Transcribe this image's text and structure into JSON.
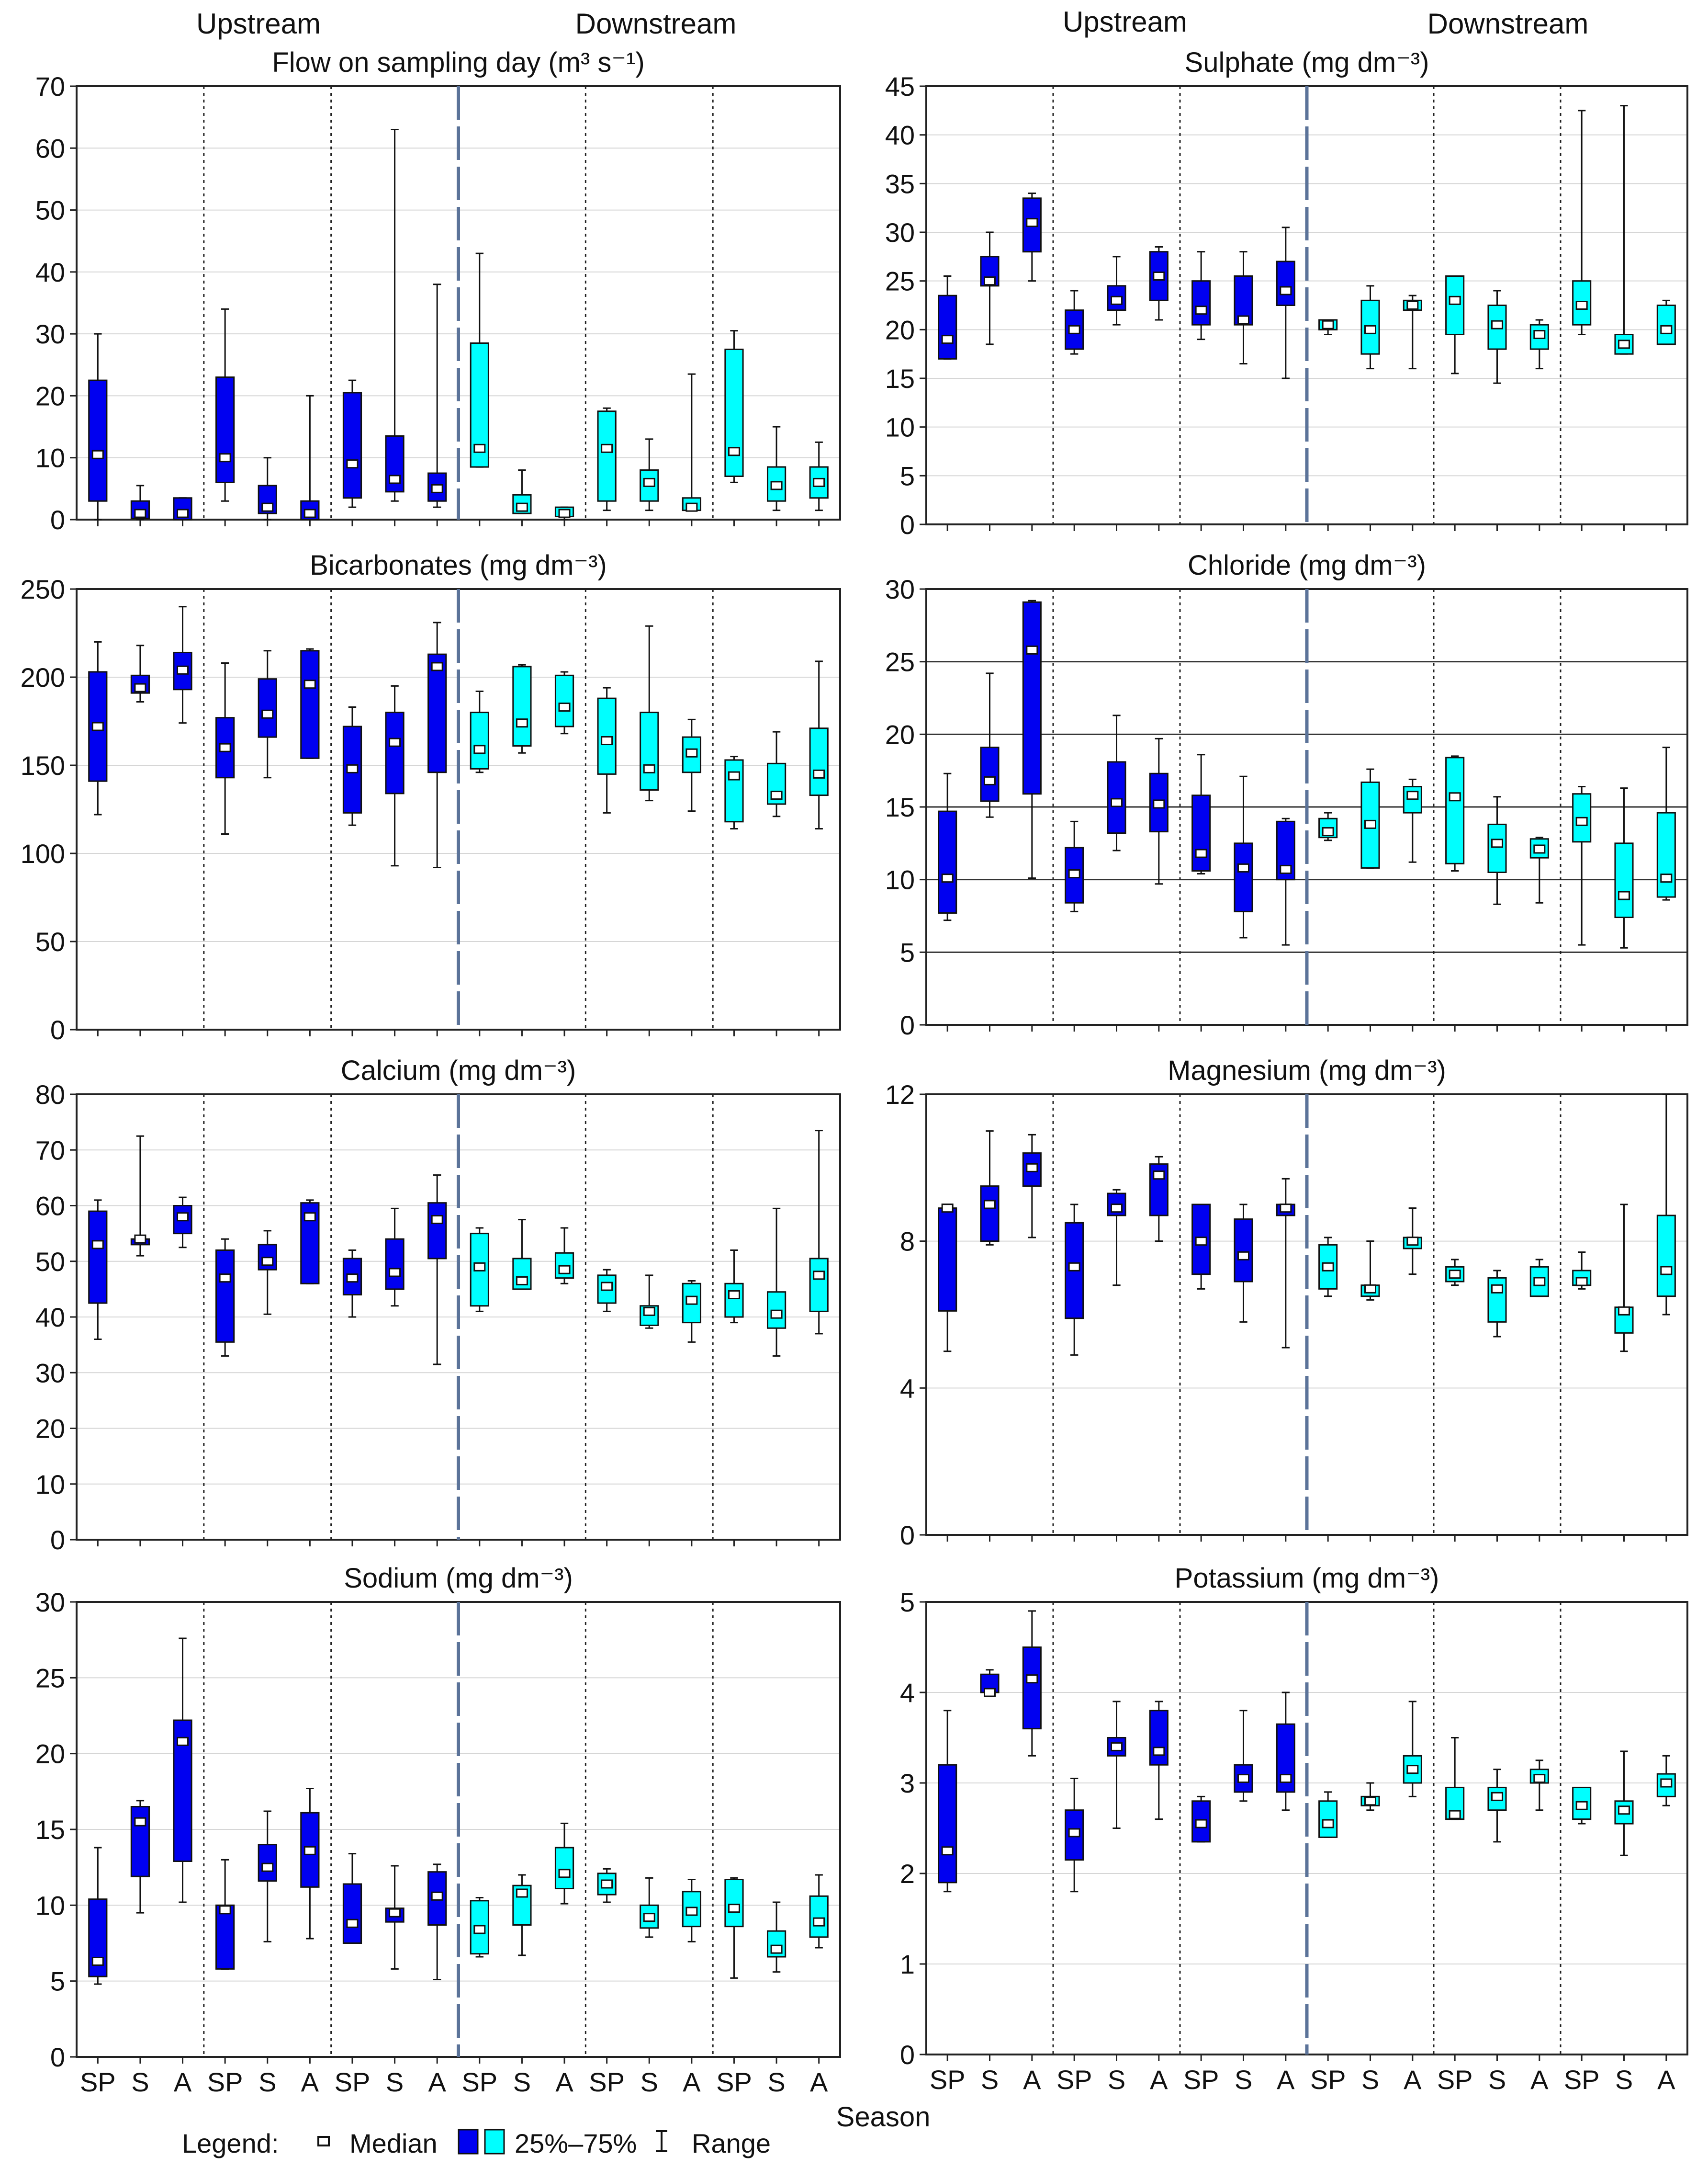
{
  "header": {
    "left": {
      "upstream": "Upstream",
      "downstream": "Downstream"
    },
    "right": {
      "upstream": "Upstream",
      "downstream": "Downstream"
    }
  },
  "season_ticks": [
    "SP",
    "S",
    "A",
    "SP",
    "S",
    "A",
    "SP",
    "S",
    "A",
    "SP",
    "S",
    "A",
    "SP",
    "S",
    "A",
    "SP",
    "S",
    "A"
  ],
  "xlabel": "Season",
  "legend": {
    "prefix": "Legend:",
    "median": "Median",
    "iqr": "25%–75%",
    "range": "Range"
  },
  "colors": {
    "upstream": "#0000f0",
    "downstream": "#00ffff",
    "box_stroke": "#111111",
    "separator": "#5b7399"
  },
  "chart_data": [
    {
      "type": "boxplot",
      "title": "Flow on sampling day (m³ s⁻¹)",
      "ylim": [
        0,
        70
      ],
      "yticks": [
        0,
        10,
        20,
        30,
        40,
        50,
        60,
        70
      ],
      "boxes": [
        [
          0,
          3,
          10.5,
          22.5,
          30
        ],
        [
          0,
          0.2,
          1,
          3,
          5.5
        ],
        [
          0,
          0,
          1,
          3.5,
          3.5
        ],
        [
          3,
          6,
          10,
          23,
          34
        ],
        [
          0,
          1,
          2,
          5.5,
          10
        ],
        [
          0,
          0,
          1,
          3,
          20
        ],
        [
          2,
          3.5,
          9,
          20.5,
          22.5
        ],
        [
          3,
          4.5,
          6.5,
          13.5,
          63
        ],
        [
          2,
          3,
          5,
          7.5,
          38
        ],
        [
          8.5,
          8.5,
          11.5,
          28.5,
          43
        ],
        [
          1,
          1,
          2,
          4,
          8
        ],
        [
          0,
          0.5,
          1,
          2,
          2
        ],
        [
          1.5,
          3,
          11.5,
          17.5,
          18
        ],
        [
          1.5,
          3,
          6,
          8,
          13
        ],
        [
          1.5,
          1.5,
          2,
          3.5,
          23.5
        ],
        [
          6,
          7,
          11,
          27.5,
          30.5
        ],
        [
          1.5,
          3,
          5.5,
          8.5,
          15
        ],
        [
          1.5,
          3.5,
          6,
          8.5,
          12.5
        ]
      ]
    },
    {
      "type": "boxplot",
      "title": "Sulphate (mg dm⁻³)",
      "ylim": [
        0,
        45
      ],
      "yticks": [
        0,
        5,
        10,
        15,
        20,
        25,
        30,
        35,
        40,
        45
      ],
      "boxes": [
        [
          17,
          17,
          19,
          23.5,
          25.5
        ],
        [
          18.5,
          24.5,
          25,
          27.5,
          30
        ],
        [
          25,
          28,
          31,
          33.5,
          34
        ],
        [
          17.5,
          18,
          20,
          22,
          24
        ],
        [
          20.5,
          22,
          23,
          24.5,
          27.5
        ],
        [
          21,
          23,
          25.5,
          28,
          28.5
        ],
        [
          19,
          20.5,
          22,
          25,
          28
        ],
        [
          16.5,
          20.5,
          21,
          25.5,
          28
        ],
        [
          15,
          22.5,
          24,
          27,
          30.5
        ],
        [
          19.5,
          20,
          20.5,
          21,
          21
        ],
        [
          16,
          17.5,
          20,
          23,
          24.5
        ],
        [
          16,
          22,
          22.5,
          23,
          23.5
        ],
        [
          15.5,
          19.5,
          23,
          25.5,
          25.5
        ],
        [
          14.5,
          18,
          20.5,
          22.5,
          24
        ],
        [
          16,
          18,
          19.5,
          20.5,
          21
        ],
        [
          19.5,
          20.5,
          22.5,
          25,
          42.5
        ],
        [
          17.5,
          17.5,
          18.5,
          19.5,
          43
        ],
        [
          18.5,
          18.5,
          20,
          22.5,
          23
        ]
      ]
    },
    {
      "type": "boxplot",
      "title": "Bicarbonates (mg dm⁻³)",
      "ylim": [
        0,
        250
      ],
      "yticks": [
        0,
        50,
        100,
        150,
        200,
        250
      ],
      "boxes": [
        [
          122,
          141,
          172,
          203,
          220
        ],
        [
          186,
          191,
          194,
          201,
          218
        ],
        [
          174,
          193,
          204,
          214,
          240
        ],
        [
          111,
          143,
          160,
          177,
          208
        ],
        [
          143,
          166,
          179,
          199,
          215
        ],
        [
          154,
          154,
          196,
          215,
          216
        ],
        [
          116,
          123,
          148,
          172,
          183
        ],
        [
          93,
          134,
          163,
          180,
          195
        ],
        [
          92,
          146,
          206,
          213,
          231
        ],
        [
          146,
          148,
          159,
          180,
          192
        ],
        [
          157,
          161,
          174,
          206,
          207
        ],
        [
          168,
          172,
          183,
          201,
          203
        ],
        [
          123,
          145,
          164,
          188,
          194
        ],
        [
          130,
          136,
          148,
          180,
          229
        ],
        [
          124,
          146,
          157,
          166,
          176
        ],
        [
          114,
          118,
          144,
          153,
          155
        ],
        [
          121,
          128,
          133,
          151,
          169
        ],
        [
          114,
          133,
          145,
          171,
          209
        ]
      ]
    },
    {
      "type": "boxplot",
      "title": "Chloride (mg dm⁻³)",
      "ylim": [
        0,
        30
      ],
      "yticks": [
        0,
        5,
        10,
        15,
        20,
        25,
        30
      ],
      "reference_lines": [
        5,
        10,
        15,
        20,
        25
      ],
      "boxes": [
        [
          7.2,
          7.7,
          10.1,
          14.7,
          17.3
        ],
        [
          14.3,
          15.4,
          16.8,
          19.1,
          24.2
        ],
        [
          10.1,
          15.9,
          25.8,
          29.1,
          29.2
        ],
        [
          7.8,
          8.4,
          10.4,
          12.2,
          14
        ],
        [
          12,
          13.2,
          15.3,
          18.1,
          21.3
        ],
        [
          9.7,
          13.3,
          15.2,
          17.3,
          19.7
        ],
        [
          10.4,
          10.6,
          11.8,
          15.8,
          18.6
        ],
        [
          6,
          7.8,
          10.8,
          12.5,
          17.1
        ],
        [
          5.5,
          10,
          10.7,
          14,
          14.2
        ],
        [
          12.7,
          12.9,
          13.3,
          14.2,
          14.6
        ],
        [
          10.8,
          10.8,
          13.8,
          16.7,
          17.6
        ],
        [
          11.2,
          14.6,
          15.8,
          16.4,
          16.9
        ],
        [
          10.6,
          11.1,
          15.7,
          18.4,
          18.5
        ],
        [
          8.3,
          10.5,
          12.5,
          13.8,
          15.7
        ],
        [
          8.4,
          11.5,
          12.1,
          12.8,
          12.9
        ],
        [
          5.5,
          12.6,
          14,
          15.9,
          16.4
        ],
        [
          5.3,
          7.4,
          8.9,
          12.5,
          16.3
        ],
        [
          8.6,
          8.8,
          10.1,
          14.6,
          19.1
        ]
      ]
    },
    {
      "type": "boxplot",
      "title": "Calcium (mg dm⁻³)",
      "ylim": [
        0,
        80
      ],
      "yticks": [
        0,
        10,
        20,
        30,
        40,
        50,
        60,
        70,
        80
      ],
      "boxes": [
        [
          36,
          42.5,
          53,
          59,
          61
        ],
        [
          51,
          53,
          54,
          54,
          72.5
        ],
        [
          52.5,
          55,
          58,
          60,
          61.5
        ],
        [
          33,
          35.5,
          47,
          52,
          54
        ],
        [
          40.5,
          48.5,
          50,
          53,
          55.5
        ],
        [
          46,
          46,
          58,
          60.5,
          61
        ],
        [
          40,
          44,
          47,
          50.5,
          52
        ],
        [
          42,
          45,
          48,
          54,
          59.5
        ],
        [
          31.5,
          50.5,
          57.5,
          60.5,
          65.5
        ],
        [
          41,
          42,
          49,
          55,
          56
        ],
        [
          45,
          45,
          46.5,
          50.5,
          57.5
        ],
        [
          46,
          47,
          48.5,
          51.5,
          56
        ],
        [
          41,
          42.5,
          45.5,
          47.5,
          48.5
        ],
        [
          38,
          38.5,
          41,
          42,
          47.5
        ],
        [
          35.5,
          39,
          43,
          46,
          46.5
        ],
        [
          39,
          40,
          44,
          46,
          52
        ],
        [
          33,
          38,
          40.5,
          44.5,
          59.5
        ],
        [
          37,
          41,
          47.5,
          50.5,
          73.5
        ]
      ]
    },
    {
      "type": "boxplot",
      "title": "Magnesium (mg dm⁻³)",
      "ylim": [
        0,
        12
      ],
      "yticks": [
        0,
        4,
        8,
        12
      ],
      "boxes": [
        [
          5,
          6.1,
          8.9,
          8.9,
          8.9
        ],
        [
          7.9,
          8,
          9,
          9.5,
          11
        ],
        [
          8.1,
          9.5,
          10,
          10.4,
          10.9
        ],
        [
          4.9,
          5.9,
          7.3,
          8.5,
          9
        ],
        [
          6.8,
          8.7,
          8.9,
          9.3,
          9.4
        ],
        [
          8,
          8.7,
          9.8,
          10.1,
          10.3
        ],
        [
          6.7,
          7.1,
          8,
          9,
          9
        ],
        [
          5.8,
          6.9,
          7.6,
          8.6,
          9
        ],
        [
          5.1,
          8.7,
          8.9,
          9,
          9.7
        ],
        [
          6.5,
          6.7,
          7.3,
          7.9,
          8.1
        ],
        [
          6.4,
          6.5,
          6.7,
          6.8,
          8
        ],
        [
          7.1,
          7.8,
          8,
          8.1,
          8.9
        ],
        [
          6.8,
          6.9,
          7.1,
          7.3,
          7.5
        ],
        [
          5.4,
          5.8,
          6.7,
          7,
          7.2
        ],
        [
          6.5,
          6.5,
          6.9,
          7.3,
          7.5
        ],
        [
          6.7,
          6.8,
          6.9,
          7.2,
          7.7
        ],
        [
          5,
          5.5,
          6.1,
          6.2,
          9
        ],
        [
          6,
          6.5,
          7.2,
          8.7,
          12
        ]
      ]
    },
    {
      "type": "boxplot",
      "title": "Sodium (mg dm⁻³)",
      "ylim": [
        0,
        30
      ],
      "yticks": [
        0,
        5,
        10,
        15,
        20,
        25,
        30
      ],
      "boxes": [
        [
          4.8,
          5.3,
          6.3,
          10.4,
          13.8
        ],
        [
          9.5,
          11.9,
          15.5,
          16.5,
          16.9
        ],
        [
          10.2,
          12.9,
          20.8,
          22.2,
          27.6
        ],
        [
          5.8,
          5.8,
          9.7,
          10,
          13
        ],
        [
          7.6,
          11.6,
          12.5,
          14,
          16.2
        ],
        [
          7.8,
          11.2,
          13.6,
          16.1,
          17.7
        ],
        [
          7.5,
          7.5,
          8.8,
          11.4,
          13.4
        ],
        [
          5.8,
          8.9,
          9.5,
          9.8,
          12.6
        ],
        [
          5.1,
          8.7,
          10.6,
          12.2,
          12.7
        ],
        [
          6.6,
          6.8,
          8.4,
          10.3,
          10.5
        ],
        [
          6.7,
          8.7,
          10.8,
          11.3,
          12
        ],
        [
          10.1,
          11.1,
          12.1,
          13.8,
          15.4
        ],
        [
          10.2,
          10.7,
          11.4,
          12.1,
          12.4
        ],
        [
          7.9,
          8.5,
          9.2,
          10,
          11.8
        ],
        [
          7.6,
          8.6,
          9.6,
          10.9,
          11.7
        ],
        [
          5.2,
          8.6,
          9.8,
          11.7,
          11.8
        ],
        [
          5.6,
          6.6,
          7.1,
          8.3,
          10.2
        ],
        [
          7.2,
          7.9,
          8.9,
          10.6,
          12
        ]
      ]
    },
    {
      "type": "boxplot",
      "title": "Potassium (mg dm⁻³)",
      "ylim": [
        0,
        5
      ],
      "yticks": [
        0,
        1,
        2,
        3,
        4,
        5
      ],
      "boxes": [
        [
          1.8,
          1.9,
          2.25,
          3.2,
          3.8
        ],
        [
          4,
          4,
          4,
          4.2,
          4.25
        ],
        [
          3.3,
          3.6,
          4.15,
          4.5,
          4.9
        ],
        [
          1.8,
          2.15,
          2.45,
          2.7,
          3.05
        ],
        [
          2.5,
          3.3,
          3.4,
          3.5,
          3.9
        ],
        [
          2.6,
          3.2,
          3.35,
          3.8,
          3.9
        ],
        [
          2.35,
          2.35,
          2.55,
          2.8,
          2.85
        ],
        [
          2.8,
          2.9,
          3.05,
          3.2,
          3.8
        ],
        [
          2.7,
          2.9,
          3.05,
          3.65,
          4
        ],
        [
          2.4,
          2.4,
          2.55,
          2.8,
          2.9
        ],
        [
          2.7,
          2.75,
          2.8,
          2.85,
          3
        ],
        [
          2.85,
          3,
          3.15,
          3.3,
          3.9
        ],
        [
          2.6,
          2.6,
          2.65,
          2.95,
          3.5
        ],
        [
          2.35,
          2.7,
          2.85,
          2.95,
          3.15
        ],
        [
          2.7,
          3,
          3.05,
          3.15,
          3.25
        ],
        [
          2.55,
          2.6,
          2.75,
          2.95,
          2.95
        ],
        [
          2.2,
          2.55,
          2.7,
          2.8,
          3.35
        ],
        [
          2.75,
          2.85,
          3,
          3.1,
          3.3
        ]
      ]
    }
  ]
}
